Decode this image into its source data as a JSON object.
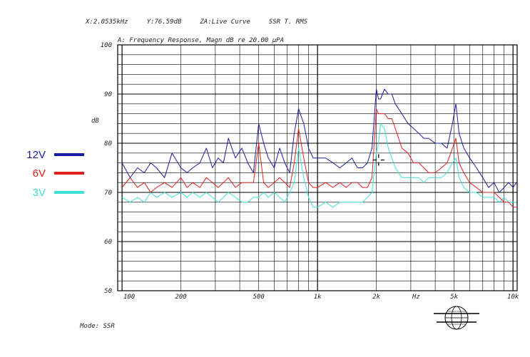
{
  "readout": {
    "x": "X:2.0535kHz",
    "y": "Y:76.59dB",
    "za": "ZA:Live Curve",
    "detector": "SSR T. RMS"
  },
  "mode": "Mode: SSR",
  "colors": {
    "12V": "#1a1e9e",
    "6V": "#e11f1f",
    "3V": "#40e0d5",
    "grid": "#000000"
  },
  "chart_data": {
    "type": "line",
    "title": "A: Frequency Response, Magn dB re 20.00 µPA",
    "ylabel": "dB",
    "xlabel": "Hz",
    "xscale": "log",
    "xlim": [
      95,
      10500
    ],
    "ylim": [
      50,
      100
    ],
    "x_ticks": [
      {
        "value": 100,
        "label": "100"
      },
      {
        "value": 200,
        "label": "200"
      },
      {
        "value": 500,
        "label": "500"
      },
      {
        "value": 1000,
        "label": "1k"
      },
      {
        "value": 2000,
        "label": "2k"
      },
      {
        "value": 5000,
        "label": "5k"
      },
      {
        "value": 10000,
        "label": "10k"
      }
    ],
    "y_ticks": [
      50,
      60,
      70,
      80,
      90,
      100
    ],
    "cursor": {
      "x": 2053.5,
      "y": 76.59
    },
    "x": [
      100,
      110,
      120,
      130,
      140,
      150,
      165,
      180,
      200,
      215,
      230,
      250,
      270,
      290,
      310,
      330,
      350,
      380,
      410,
      440,
      470,
      500,
      530,
      560,
      600,
      640,
      680,
      720,
      760,
      800,
      850,
      900,
      950,
      1000,
      1100,
      1200,
      1300,
      1400,
      1500,
      1600,
      1700,
      1800,
      1900,
      2000,
      2050,
      2100,
      2200,
      2300,
      2400,
      2500,
      2700,
      2900,
      3100,
      3300,
      3500,
      3700,
      4000,
      4300,
      4600,
      4900,
      5100,
      5300,
      5600,
      6000,
      6500,
      7000,
      7500,
      8000,
      8500,
      9000,
      9500,
      10000,
      10400
    ],
    "series": [
      {
        "name": "12V",
        "values": [
          76,
          73,
          75,
          74,
          76,
          75,
          73,
          78,
          75,
          74,
          75,
          76,
          79,
          75,
          77,
          76,
          81,
          77,
          79,
          76,
          74,
          84,
          80,
          77,
          75,
          79,
          76,
          74,
          82,
          87,
          84,
          79,
          77,
          77,
          77,
          76,
          75,
          76,
          77,
          75,
          75,
          76,
          79,
          91,
          89,
          89,
          91,
          90,
          90,
          88,
          86,
          84,
          83,
          82,
          81,
          81,
          80,
          80,
          79,
          84,
          88,
          82,
          79,
          77,
          75,
          73,
          71,
          72,
          70,
          71,
          72,
          71,
          72
        ]
      },
      {
        "name": "6V",
        "values": [
          71,
          73,
          71,
          72,
          70,
          71,
          72,
          71,
          73,
          71,
          72,
          71,
          73,
          72,
          71,
          72,
          73,
          71,
          72,
          72,
          72,
          80,
          72,
          71,
          72,
          73,
          72,
          71,
          76,
          83,
          77,
          72,
          71,
          71,
          72,
          71,
          72,
          71,
          72,
          72,
          71,
          71,
          73,
          87,
          86,
          86,
          86,
          85,
          85,
          83,
          79,
          78,
          76,
          76,
          75,
          74,
          74,
          75,
          76,
          79,
          81,
          76,
          74,
          72,
          71,
          70,
          70,
          70,
          69,
          68,
          68,
          67,
          67
        ]
      },
      {
        "name": "3V",
        "values": [
          69,
          68,
          69,
          68,
          70,
          69,
          70,
          69,
          70,
          69,
          70,
          69,
          70,
          69,
          68,
          69,
          70,
          69,
          68,
          68,
          69,
          69,
          70,
          69,
          70,
          69,
          68,
          70,
          72,
          79,
          73,
          69,
          67,
          67,
          68,
          67,
          68,
          68,
          68,
          68,
          68,
          69,
          70,
          78,
          80,
          84,
          83,
          79,
          77,
          75,
          73,
          73,
          73,
          73,
          72,
          73,
          73,
          73,
          74,
          76,
          77,
          73,
          71,
          70,
          70,
          69,
          69,
          69,
          68,
          69,
          68,
          68,
          68
        ]
      }
    ]
  }
}
